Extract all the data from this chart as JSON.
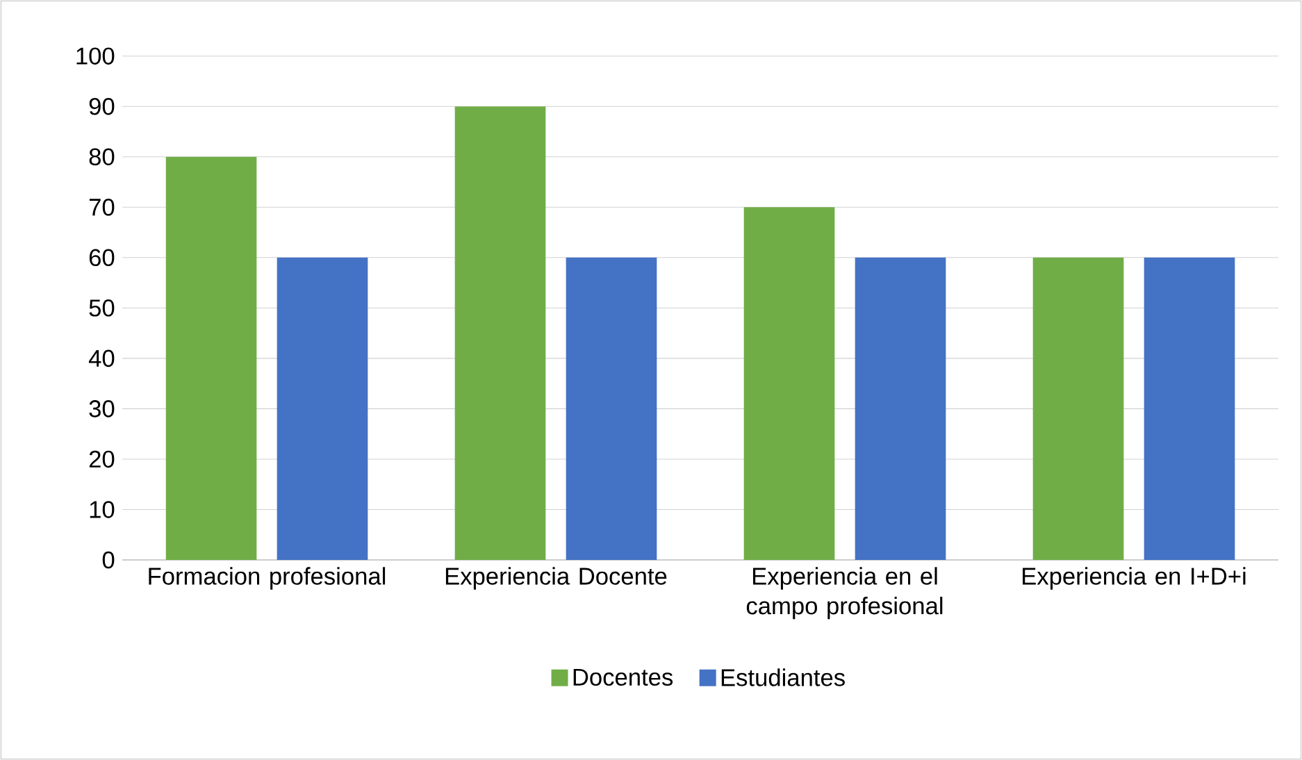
{
  "chart_data": {
    "type": "bar",
    "categories": [
      "Formacion profesional",
      "Experiencia Docente",
      "Experiencia en el campo profesional",
      "Experiencia en I+D+i"
    ],
    "series": [
      {
        "name": "Docentes",
        "color": "#70ad47",
        "values": [
          80,
          90,
          70,
          60
        ]
      },
      {
        "name": "Estudiantes",
        "color": "#4472c4",
        "values": [
          60,
          60,
          60,
          60
        ]
      }
    ],
    "ylim": [
      0,
      100
    ],
    "yticks": [
      0,
      10,
      20,
      30,
      40,
      50,
      60,
      70,
      80,
      90,
      100
    ],
    "grid": "y",
    "legend": "bottom"
  }
}
